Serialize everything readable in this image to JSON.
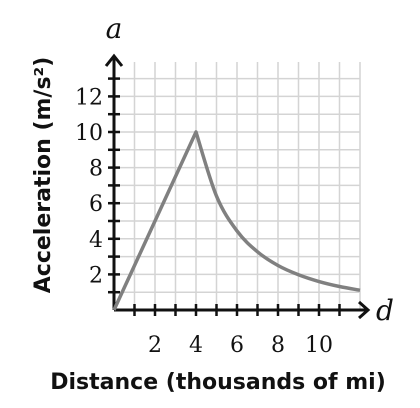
{
  "chart_data": {
    "type": "line",
    "title": "",
    "xlabel": "Distance (thousands of mi)",
    "ylabel": "Acceleration (m/s²)",
    "x_axis_var": "d",
    "y_axis_var": "a",
    "xlim": [
      0,
      12
    ],
    "ylim": [
      0,
      14
    ],
    "x_ticks": [
      2,
      4,
      6,
      8,
      10
    ],
    "y_ticks": [
      2,
      4,
      6,
      8,
      10,
      12
    ],
    "x_tick_labels": [
      "2",
      "4",
      "6",
      "8",
      "10"
    ],
    "y_tick_labels": [
      "2",
      "4",
      "6",
      "8",
      "10",
      "12"
    ],
    "grid": true,
    "series": [
      {
        "x": [
          0,
          4,
          5,
          6,
          7,
          8,
          9,
          10,
          11,
          12
        ],
        "y": [
          0,
          10,
          6.4,
          4.44,
          3.27,
          2.5,
          1.98,
          1.6,
          1.32,
          1.11
        ],
        "color": "#808080"
      }
    ]
  }
}
